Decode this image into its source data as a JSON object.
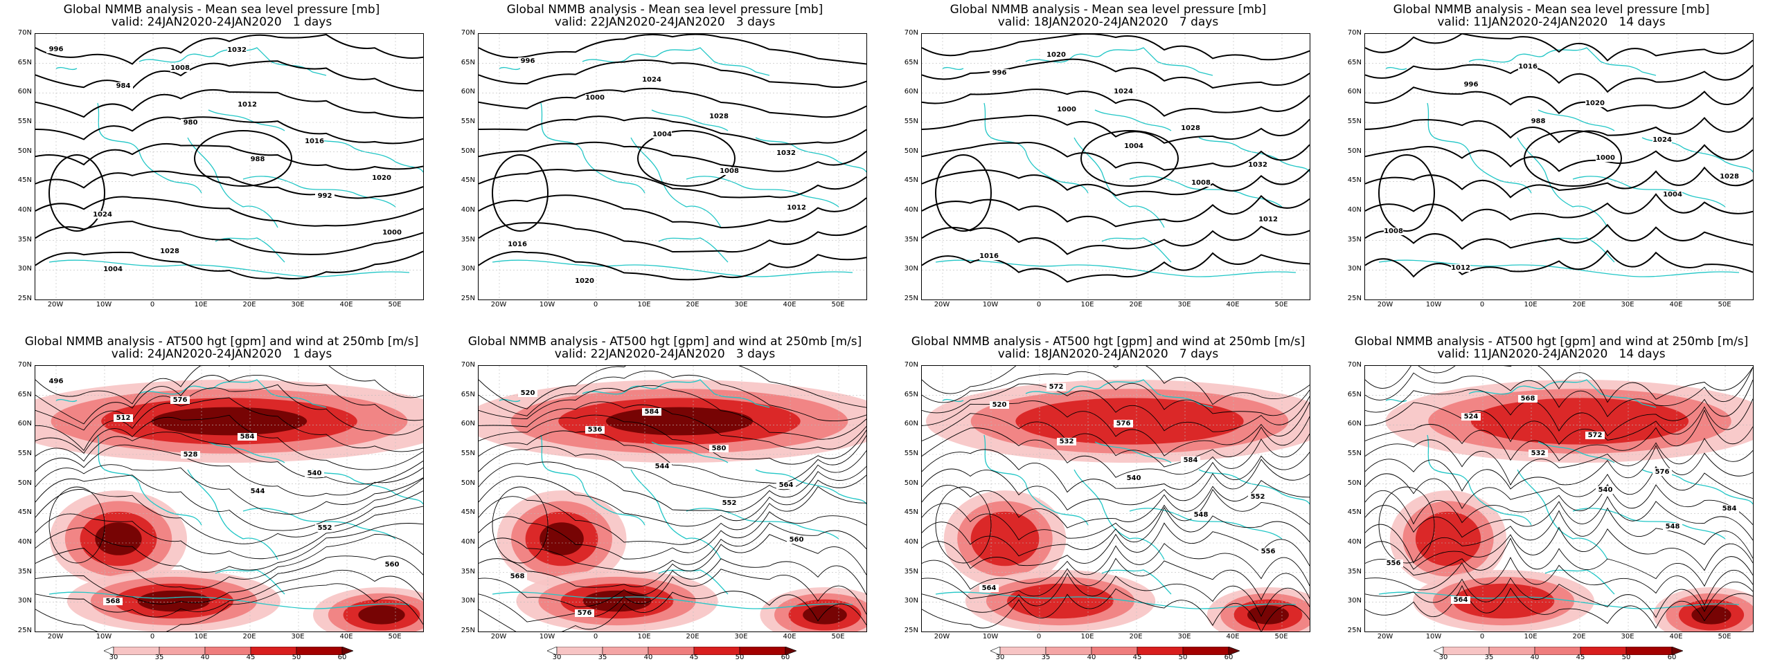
{
  "top_row": [
    {
      "title": "Global NMMB analysis - Mean sea level pressure [mb]",
      "subtitle": "valid: 24JAN2020-24JAN2020   1 days",
      "labels": [
        "996",
        "984",
        "980",
        "988",
        "992",
        "1000",
        "1004",
        "1008",
        "1012",
        "1016",
        "1020",
        "1024",
        "1028",
        "1032"
      ]
    },
    {
      "title": "Global NMMB analysis - Mean sea level pressure [mb]",
      "subtitle": "valid: 22JAN2020-24JAN2020   3 days",
      "labels": [
        "996",
        "1000",
        "1004",
        "1008",
        "1012",
        "1016",
        "1020",
        "1024",
        "1028",
        "1032"
      ]
    },
    {
      "title": "Global NMMB analysis - Mean sea level pressure [mb]",
      "subtitle": "valid: 18JAN2020-24JAN2020   7 days",
      "labels": [
        "996",
        "1000",
        "1004",
        "1008",
        "1012",
        "1016",
        "1020",
        "1024",
        "1028",
        "1032"
      ]
    },
    {
      "title": "Global NMMB analysis - Mean sea level pressure [mb]",
      "subtitle": "valid: 11JAN2020-24JAN2020   14 days",
      "labels": [
        "996",
        "988",
        "1000",
        "1004",
        "1008",
        "1012",
        "1016",
        "1020",
        "1024",
        "1028"
      ]
    }
  ],
  "bottom_row": [
    {
      "title": "Global NMMB analysis - AT500 hgt [gpm] and wind at 250mb [m/s]",
      "subtitle": "valid: 24JAN2020-24JAN2020   1 days",
      "labels": [
        "496",
        "512",
        "528",
        "544",
        "552",
        "560",
        "568",
        "576",
        "584",
        "540"
      ]
    },
    {
      "title": "Global NMMB analysis - AT500 hgt [gpm] and wind at 250mb [m/s]",
      "subtitle": "valid: 22JAN2020-24JAN2020   3 days",
      "labels": [
        "520",
        "536",
        "544",
        "552",
        "560",
        "568",
        "576",
        "584",
        "580",
        "564"
      ]
    },
    {
      "title": "Global NMMB analysis - AT500 hgt [gpm] and wind at 250mb [m/s]",
      "subtitle": "valid: 18JAN2020-24JAN2020   7 days",
      "labels": [
        "520",
        "532",
        "540",
        "548",
        "556",
        "564",
        "572",
        "576",
        "584",
        "552"
      ]
    },
    {
      "title": "Global NMMB analysis - AT500 hgt [gpm] and wind at 250mb [m/s]",
      "subtitle": "valid: 11JAN2020-24JAN2020   14 days",
      "labels": [
        "524",
        "532",
        "540",
        "548",
        "556",
        "564",
        "568",
        "572",
        "576",
        "584"
      ]
    }
  ],
  "lat_labels": [
    "70N",
    "65N",
    "60N",
    "55N",
    "50N",
    "45N",
    "40N",
    "35N",
    "30N",
    "25N"
  ],
  "lon_labels": [
    "20W",
    "10W",
    "0",
    "10E",
    "20E",
    "30E",
    "40E",
    "50E"
  ],
  "colorbar_labels": [
    "30",
    "35",
    "40",
    "45",
    "50",
    "60"
  ],
  "colors": {
    "coast": "#21c6c6",
    "contour": "#000000",
    "wind_light": "#f7c4c4",
    "wind_mid": "#ef7d7d",
    "wind_strong": "#d81e1e",
    "wind_max": "#6b0000"
  }
}
